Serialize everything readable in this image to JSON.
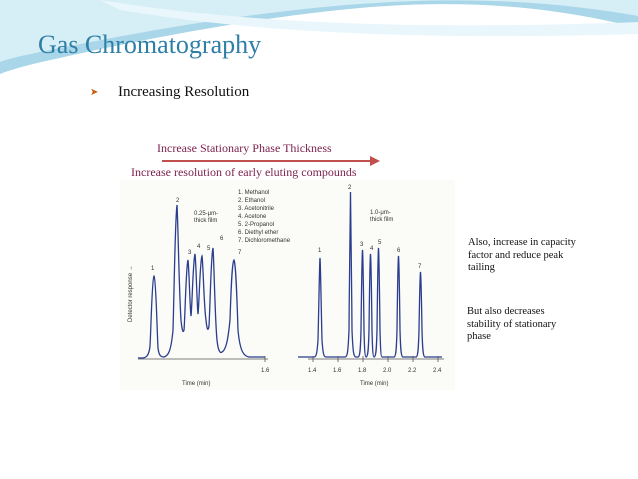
{
  "slide": {
    "title": "Gas Chromatography",
    "bullet": {
      "icon": "arrow-bullet-icon",
      "text": "Increasing Resolution"
    }
  },
  "annotations": {
    "stationary_phase": "Increase Stationary Phase Thickness",
    "early_eluting": "Increase resolution of early eluting compounds"
  },
  "notes": {
    "note1": "Also, increase in capacity factor and reduce peak tailing",
    "note2": "But also decreases stability of stationary phase"
  },
  "figure": {
    "y_axis_label": "Detector response →",
    "left_panel": {
      "film_label_line1": "0.25-μm-",
      "film_label_line2": "thick film",
      "x_axis_label": "Time (min)",
      "tick_label": "1.6"
    },
    "right_panel": {
      "film_label_line1": "1.0-μm-",
      "film_label_line2": "thick film",
      "x_axis_label": "Time (min)",
      "tick_labels": [
        "1.4",
        "1.6",
        "1.8",
        "2.0",
        "2.2",
        "2.4"
      ]
    },
    "legend": [
      "1. Methanol",
      "2. Ethanol",
      "3. Acetonitrile",
      "4. Acetone",
      "5. 2-Propanol",
      "6. Diethyl ether",
      "7. Dichloromethane"
    ],
    "peak_numbers": [
      "1",
      "2",
      "3",
      "4",
      "5",
      "6",
      "7"
    ]
  },
  "colors": {
    "title": "#2e7ea6",
    "annotation": "#7b1f4a",
    "arrow": "#c0504d",
    "trace": "#2b3d8f",
    "bullet": "#c55a11"
  }
}
